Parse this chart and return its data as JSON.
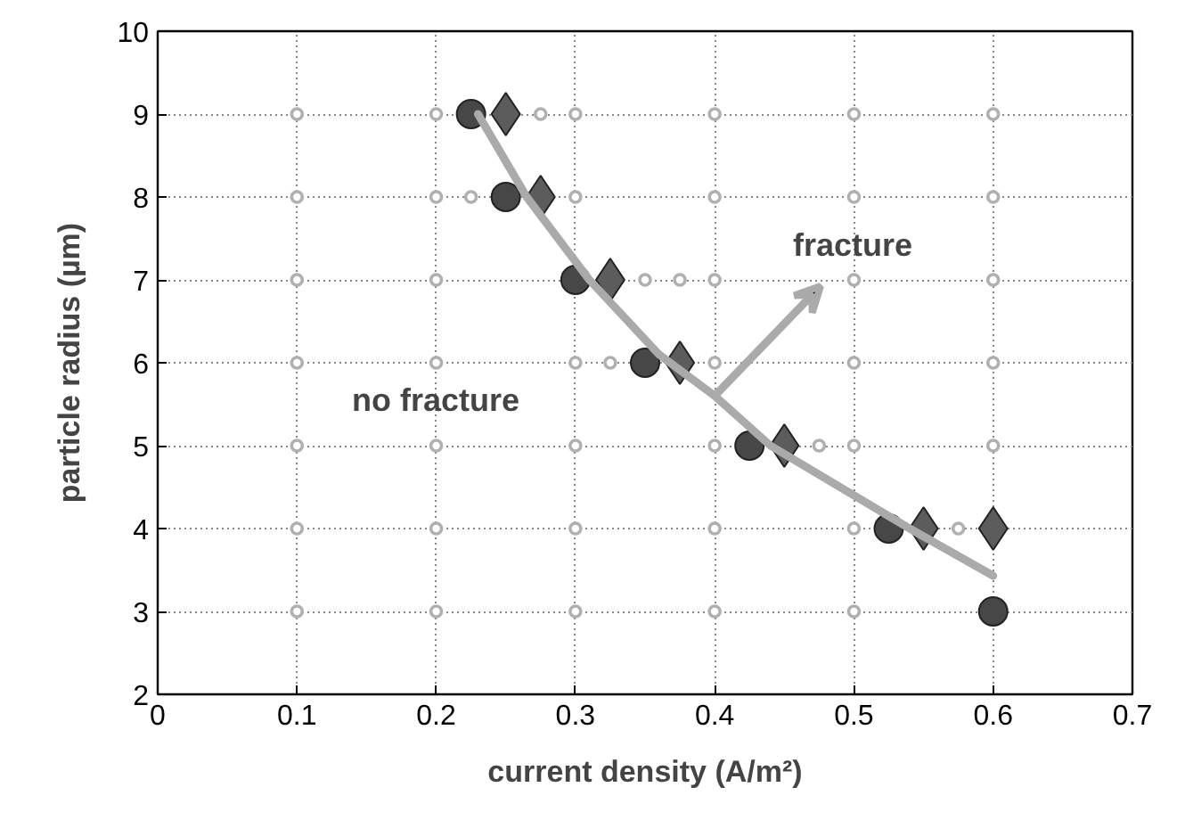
{
  "chart_data": {
    "type": "scatter",
    "xlabel": "current density (A/m²)",
    "ylabel": "particle radius (µm)",
    "xlim": [
      0,
      0.7
    ],
    "ylim": [
      2,
      10
    ],
    "xticks": [
      0,
      0.1,
      0.2,
      0.3,
      0.4,
      0.5,
      0.6,
      0.7
    ],
    "yticks": [
      2,
      3,
      4,
      5,
      6,
      7,
      8,
      9,
      10
    ],
    "grid": true,
    "series": [
      {
        "marker": "circle",
        "color": "#b0b0b0",
        "x": [
          0.1,
          0.2,
          0.275,
          0.3,
          0.4,
          0.5,
          0.6,
          0.1,
          0.2,
          0.225,
          0.3,
          0.4,
          0.5,
          0.6,
          0.1,
          0.2,
          0.35,
          0.375,
          0.4,
          0.5,
          0.6,
          0.1,
          0.2,
          0.3,
          0.325,
          0.4,
          0.5,
          0.6,
          0.1,
          0.2,
          0.3,
          0.4,
          0.475,
          0.5,
          0.6,
          0.1,
          0.2,
          0.3,
          0.4,
          0.5,
          0.575,
          0.1,
          0.2,
          0.3,
          0.4,
          0.5
        ],
        "values": [
          9,
          9,
          9,
          9,
          9,
          9,
          9,
          8,
          8,
          8,
          8,
          8,
          8,
          8,
          7,
          7,
          7,
          7,
          7,
          7,
          7,
          6,
          6,
          6,
          6,
          6,
          6,
          6,
          5,
          5,
          5,
          5,
          5,
          5,
          5,
          4,
          4,
          4,
          4,
          4,
          4,
          3,
          3,
          3,
          3,
          3
        ]
      },
      {
        "marker": "circle",
        "color": "#474747",
        "x": [
          0.225,
          0.25,
          0.3,
          0.35,
          0.425,
          0.525,
          0.6
        ],
        "values": [
          9,
          8,
          7,
          6,
          5,
          4,
          3
        ]
      },
      {
        "marker": "diamond",
        "color": "#5c5c5c",
        "x": [
          0.25,
          0.275,
          0.325,
          0.375,
          0.45,
          0.55,
          0.6
        ],
        "values": [
          9,
          8,
          7,
          6,
          5,
          4,
          4
        ]
      },
      {
        "type": "line",
        "marker": "none",
        "color": "#aaaaaa",
        "x": [
          0.23,
          0.265,
          0.31,
          0.36,
          0.4,
          0.44,
          0.54,
          0.6
        ],
        "values": [
          9,
          8,
          7,
          6.1,
          5.6,
          5,
          4,
          3.43
        ]
      }
    ],
    "annotations": [
      "fracture",
      "no fracture"
    ]
  }
}
